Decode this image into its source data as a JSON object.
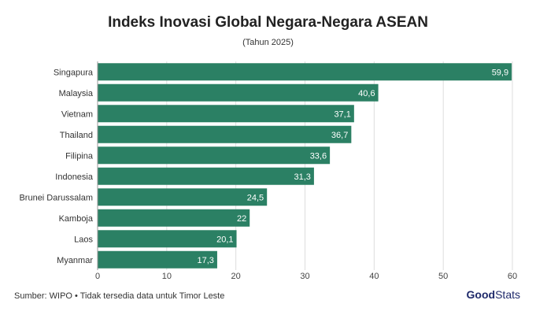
{
  "chart_data": {
    "type": "bar",
    "orientation": "horizontal",
    "title": "Indeks Inovasi Global Negara-Negara ASEAN",
    "subtitle": "(Tahun 2025)",
    "categories": [
      "Singapura",
      "Malaysia",
      "Vietnam",
      "Thailand",
      "Filipina",
      "Indonesia",
      "Brunei Darussalam",
      "Kamboja",
      "Laos",
      "Myanmar"
    ],
    "values": [
      59.9,
      40.6,
      37.1,
      36.7,
      33.6,
      31.3,
      24.5,
      22,
      20.1,
      17.3
    ],
    "value_labels": [
      "59,9",
      "40,6",
      "37,1",
      "36,7",
      "33,6",
      "31,3",
      "24,5",
      "22",
      "20,1",
      "17,3"
    ],
    "xlim": [
      0,
      60
    ],
    "xticks": [
      "0",
      "10",
      "20",
      "30",
      "40",
      "50",
      "60"
    ],
    "grid": true,
    "bar_color": "#2b8064"
  },
  "footer": {
    "source": "Sumber: WIPO • Tidak tersedia data untuk Timor Leste",
    "logo_bold": "Good",
    "logo_rest": "Stats"
  }
}
